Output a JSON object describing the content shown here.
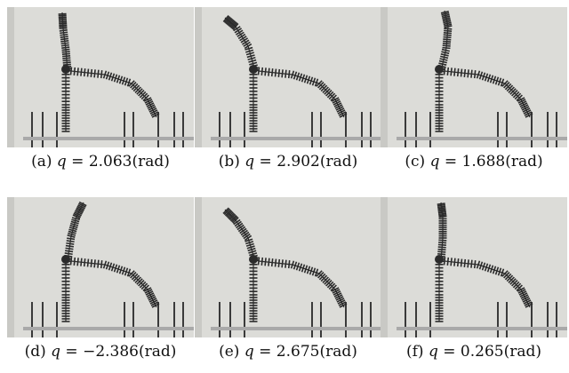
{
  "figures": [
    {
      "tag": "(a)",
      "var": "q",
      "eq": "=",
      "value": "2.063",
      "unit": "(rad)",
      "variant": "a"
    },
    {
      "tag": "(b)",
      "var": "q",
      "eq": "=",
      "value": "2.902",
      "unit": "(rad)",
      "variant": "b"
    },
    {
      "tag": "(c)",
      "var": "q",
      "eq": "=",
      "value": "1.688",
      "unit": "(rad)",
      "variant": "c"
    },
    {
      "tag": "(d)",
      "var": "q",
      "eq": "=",
      "value": "−2.386",
      "unit": "(rad)",
      "variant": "d"
    },
    {
      "tag": "(e)",
      "var": "q",
      "eq": "=",
      "value": "2.675",
      "unit": "(rad)",
      "variant": "e"
    },
    {
      "tag": "(f)",
      "var": "q",
      "eq": "=",
      "value": "0.265",
      "unit": "(rad)",
      "variant": "f"
    }
  ],
  "colors": {
    "wall": "#dcdcd8",
    "wall_shade": "#c9c9c5",
    "frame_dark": "#3a3a3a",
    "robot": "#2b2b2b",
    "base": "#a9a9a9"
  }
}
